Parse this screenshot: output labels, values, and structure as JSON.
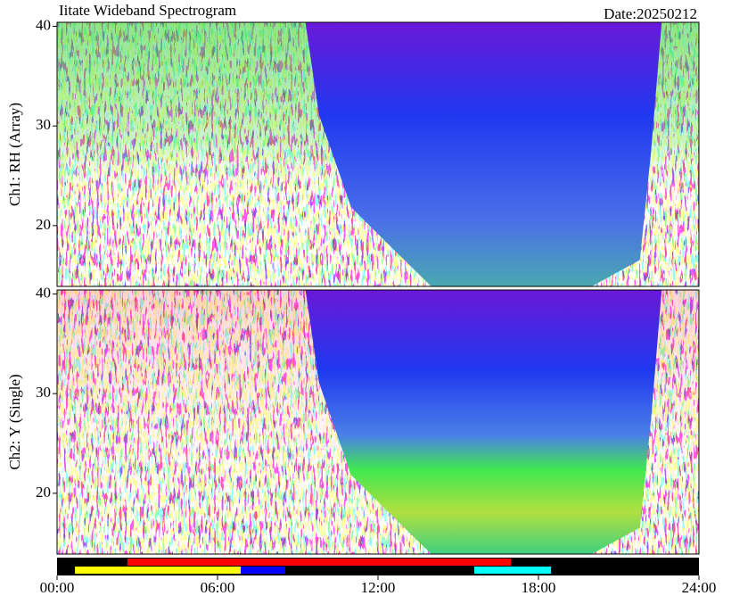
{
  "chart_data": [
    {
      "type": "spectrogram",
      "title": "Iitate Wideband Spectrogram",
      "annotation": "Date:20250212",
      "ylabel": "Ch1: RH (Array)",
      "xlim": [
        0,
        24
      ],
      "ylim": [
        13.9,
        40.4
      ],
      "yticks": [
        20,
        30,
        40
      ]
    },
    {
      "type": "spectrogram",
      "ylabel": "Ch2: Y (Single)",
      "xlim": [
        0,
        24
      ],
      "ylim": [
        13.9,
        40.4
      ],
      "yticks": [
        20,
        30,
        40
      ],
      "xticks": [
        {
          "value": 0,
          "label": "00:00"
        },
        {
          "value": 6,
          "label": "06:00"
        },
        {
          "value": 12,
          "label": "12:00"
        },
        {
          "value": 18,
          "label": "18:00"
        },
        {
          "value": 24,
          "label": "24:00"
        }
      ]
    }
  ],
  "status_bar": [
    [
      {
        "start": 2.63,
        "end": 16.97,
        "color": "#ff0000"
      }
    ],
    [
      {
        "start": 0.67,
        "end": 6.87,
        "color": "#ffff00"
      },
      {
        "start": 6.87,
        "end": 8.53,
        "color": "#0000ff"
      },
      {
        "start": 15.6,
        "end": 18.47,
        "color": "#00ffff"
      }
    ]
  ]
}
